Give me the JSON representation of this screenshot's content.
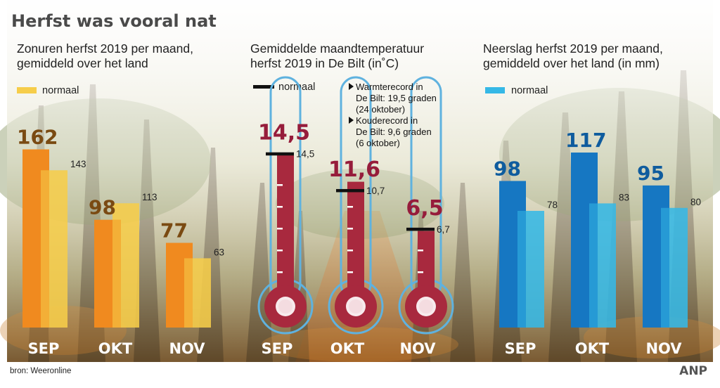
{
  "title": "Herfst was vooral nat",
  "source": "bron: Weeronline",
  "logo": "ANP",
  "colors": {
    "sun": "#f08a1f",
    "sun_normal": "#f6cd4a",
    "sun_value": "#7a4a12",
    "rain": "#1677c2",
    "rain_normal": "#35b8e6",
    "rain_value": "#0f5c9e",
    "temp": "#a8293e",
    "temp_value": "#961c3b",
    "tube_outline": "#5fb2df"
  },
  "chart_data": [
    {
      "type": "bar",
      "title_lines": [
        "Zonuren herfst 2019 per maand,",
        "gemiddeld over het land"
      ],
      "legend": "normaal",
      "categories": [
        "SEP",
        "OKT",
        "NOV"
      ],
      "series": [
        {
          "values": [
            162,
            98,
            77
          ]
        },
        {
          "name": "normaal",
          "values": [
            143,
            113,
            63
          ]
        }
      ],
      "ylim": [
        0,
        170
      ]
    },
    {
      "type": "bar",
      "title_lines": [
        "Gemiddelde maandtemperatuur",
        "herfst 2019 in De Bilt (in˚C)"
      ],
      "legend": "normaal",
      "categories": [
        "SEP",
        "OKT",
        "NOV"
      ],
      "series": [
        {
          "values": [
            14.5,
            11.6,
            6.5
          ],
          "labels": [
            "14,5",
            "11,6",
            "6,5"
          ]
        },
        {
          "name": "normaal",
          "values": [
            14.5,
            10.7,
            6.7
          ],
          "labels": [
            "14,5",
            "10,7",
            "6,7"
          ]
        }
      ],
      "ylim": [
        0,
        19.5
      ],
      "annotations": [
        [
          "Warmterecord in",
          "De Bilt: 19,5 graden",
          "(24 oktober)"
        ],
        [
          "Kouderecord in",
          "De Bilt: 9,6 graden",
          "(6 oktober)"
        ]
      ]
    },
    {
      "type": "bar",
      "title_lines": [
        "Neerslag herfst 2019 per maand,",
        "gemiddeld over het land (in mm)"
      ],
      "legend": "normaal",
      "categories": [
        "SEP",
        "OKT",
        "NOV"
      ],
      "series": [
        {
          "values": [
            98,
            117,
            95
          ]
        },
        {
          "name": "normaal",
          "values": [
            78,
            83,
            80
          ]
        }
      ],
      "ylim": [
        0,
        125
      ]
    }
  ]
}
